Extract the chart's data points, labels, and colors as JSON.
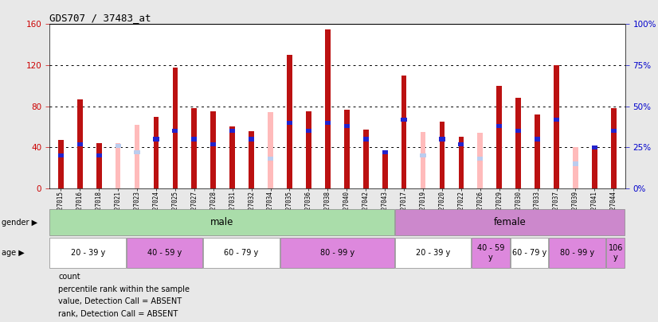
{
  "title": "GDS707 / 37483_at",
  "samples": [
    "GSM27015",
    "GSM27016",
    "GSM27018",
    "GSM27021",
    "GSM27023",
    "GSM27024",
    "GSM27025",
    "GSM27027",
    "GSM27028",
    "GSM27031",
    "GSM27032",
    "GSM27034",
    "GSM27035",
    "GSM27036",
    "GSM27038",
    "GSM27040",
    "GSM27042",
    "GSM27043",
    "GSM27017",
    "GSM27019",
    "GSM27020",
    "GSM27022",
    "GSM27026",
    "GSM27029",
    "GSM27030",
    "GSM27033",
    "GSM27037",
    "GSM27039",
    "GSM27041",
    "GSM27044"
  ],
  "count": [
    47,
    87,
    44,
    0,
    0,
    70,
    118,
    78,
    75,
    60,
    56,
    0,
    130,
    75,
    155,
    77,
    57,
    35,
    110,
    0,
    65,
    50,
    0,
    100,
    88,
    72,
    120,
    0,
    42,
    78
  ],
  "rank": [
    20,
    27,
    20,
    0,
    0,
    30,
    35,
    30,
    27,
    35,
    30,
    0,
    40,
    35,
    40,
    38,
    30,
    22,
    42,
    0,
    30,
    27,
    0,
    38,
    35,
    30,
    42,
    0,
    25,
    35
  ],
  "absent_count": [
    0,
    0,
    0,
    44,
    62,
    0,
    0,
    0,
    0,
    0,
    0,
    74,
    0,
    0,
    0,
    0,
    0,
    0,
    0,
    55,
    0,
    0,
    54,
    0,
    0,
    0,
    0,
    40,
    0,
    0
  ],
  "absent_rank": [
    0,
    0,
    0,
    26,
    22,
    0,
    0,
    0,
    0,
    0,
    0,
    18,
    0,
    0,
    0,
    0,
    0,
    0,
    0,
    20,
    0,
    0,
    18,
    0,
    0,
    0,
    0,
    15,
    0,
    0
  ],
  "gender_groups": [
    {
      "label": "male",
      "start": 0,
      "end": 17,
      "color": "#aaddaa"
    },
    {
      "label": "female",
      "start": 18,
      "end": 29,
      "color": "#cc88cc"
    }
  ],
  "age_groups": [
    {
      "label": "20 - 39 y",
      "start": 0,
      "end": 3,
      "color": "#ffffff"
    },
    {
      "label": "40 - 59 y",
      "start": 4,
      "end": 7,
      "color": "#dd88dd"
    },
    {
      "label": "60 - 79 y",
      "start": 8,
      "end": 11,
      "color": "#ffffff"
    },
    {
      "label": "80 - 99 y",
      "start": 12,
      "end": 17,
      "color": "#dd88dd"
    },
    {
      "label": "20 - 39 y",
      "start": 18,
      "end": 21,
      "color": "#ffffff"
    },
    {
      "label": "40 - 59\ny",
      "start": 22,
      "end": 23,
      "color": "#dd88dd"
    },
    {
      "label": "60 - 79 y",
      "start": 24,
      "end": 25,
      "color": "#ffffff"
    },
    {
      "label": "80 - 99 y",
      "start": 26,
      "end": 28,
      "color": "#dd88dd"
    },
    {
      "label": "106\ny",
      "start": 29,
      "end": 29,
      "color": "#dd88dd"
    }
  ],
  "ylim_left": [
    0,
    160
  ],
  "ylim_right": [
    0,
    100
  ],
  "yticks_left": [
    0,
    40,
    80,
    120,
    160
  ],
  "yticks_right": [
    0,
    25,
    50,
    75,
    100
  ],
  "bar_color_count": "#bb1111",
  "bar_color_rank": "#2222cc",
  "bar_color_absent_count": "#ffbbbb",
  "bar_color_absent_rank": "#bbccee",
  "background_color": "#e8e8e8",
  "plot_bg_color": "#ffffff",
  "ylabel_left_color": "#cc0000",
  "ylabel_right_color": "#0000cc"
}
